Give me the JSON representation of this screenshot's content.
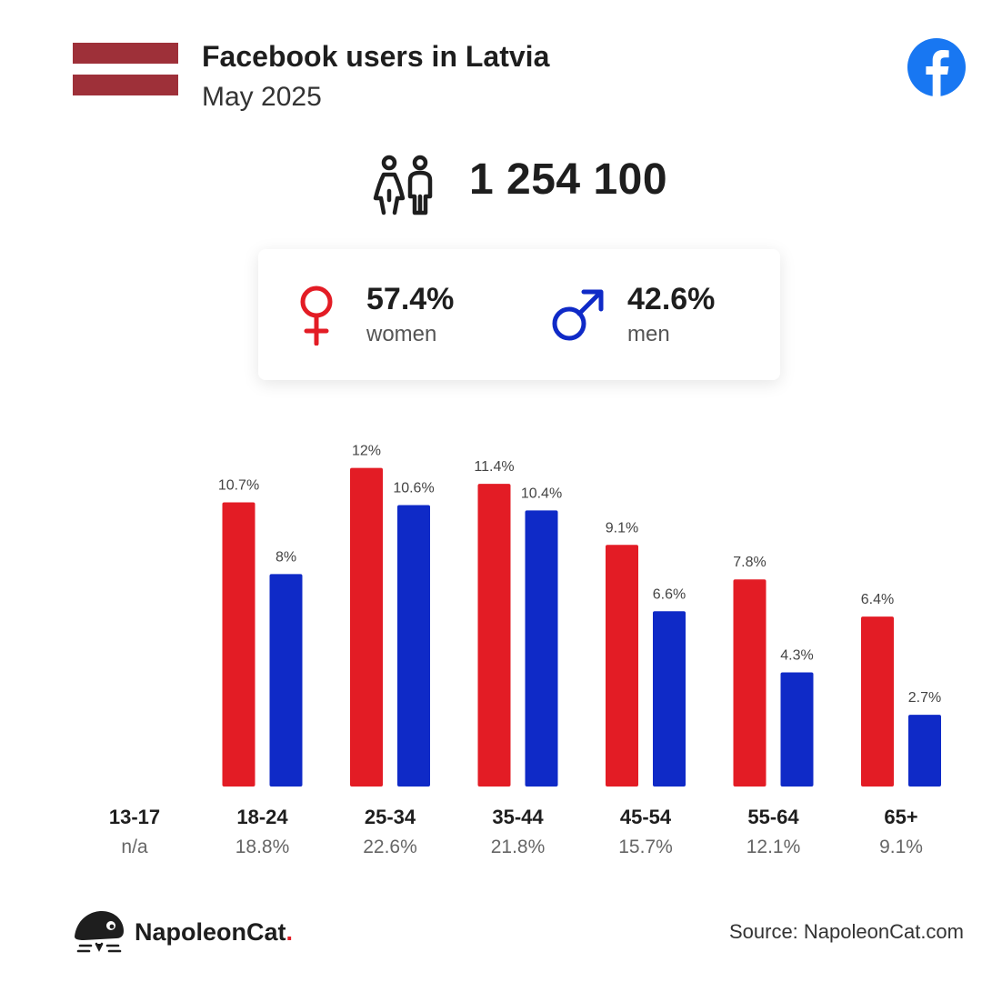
{
  "header": {
    "title": "Facebook users in Latvia",
    "subtitle": "May 2025",
    "flag_colors": [
      "#9e3039",
      "#ffffff",
      "#9e3039"
    ],
    "platform_icon": "facebook-icon",
    "platform_color": "#1877f2"
  },
  "summary": {
    "icon": "users-icon",
    "total": "1 254 100"
  },
  "gender": {
    "women": {
      "pct": "57.4%",
      "label": "women",
      "icon": "female-symbol-icon",
      "color": "#e31c25"
    },
    "men": {
      "pct": "42.6%",
      "label": "men",
      "icon": "male-symbol-icon",
      "color": "#0f2ac7"
    }
  },
  "chart_data": {
    "type": "bar",
    "categories": [
      "13-17",
      "18-24",
      "25-34",
      "35-44",
      "45-54",
      "55-64",
      "65+"
    ],
    "category_totals": [
      "n/a",
      "18.8%",
      "22.6%",
      "21.8%",
      "15.7%",
      "12.1%",
      "9.1%"
    ],
    "series": [
      {
        "name": "women",
        "color": "#e31c25",
        "values": [
          null,
          10.7,
          12,
          11.4,
          9.1,
          7.8,
          6.4
        ],
        "labels": [
          "",
          "10.7%",
          "12%",
          "11.4%",
          "9.1%",
          "7.8%",
          "6.4%"
        ]
      },
      {
        "name": "men",
        "color": "#0f2ac7",
        "values": [
          null,
          8,
          10.6,
          10.4,
          6.6,
          4.3,
          2.7
        ],
        "labels": [
          "",
          "8%",
          "10.6%",
          "10.4%",
          "6.6%",
          "4.3%",
          "2.7%"
        ]
      }
    ],
    "ylim": [
      0,
      12
    ],
    "grid": false,
    "legend": "none"
  },
  "footer": {
    "brand_name": "NapoleonCat",
    "brand_suffix": ".",
    "brand_icon": "napoleoncat-logo-icon",
    "source": "Source: NapoleonCat.com"
  }
}
